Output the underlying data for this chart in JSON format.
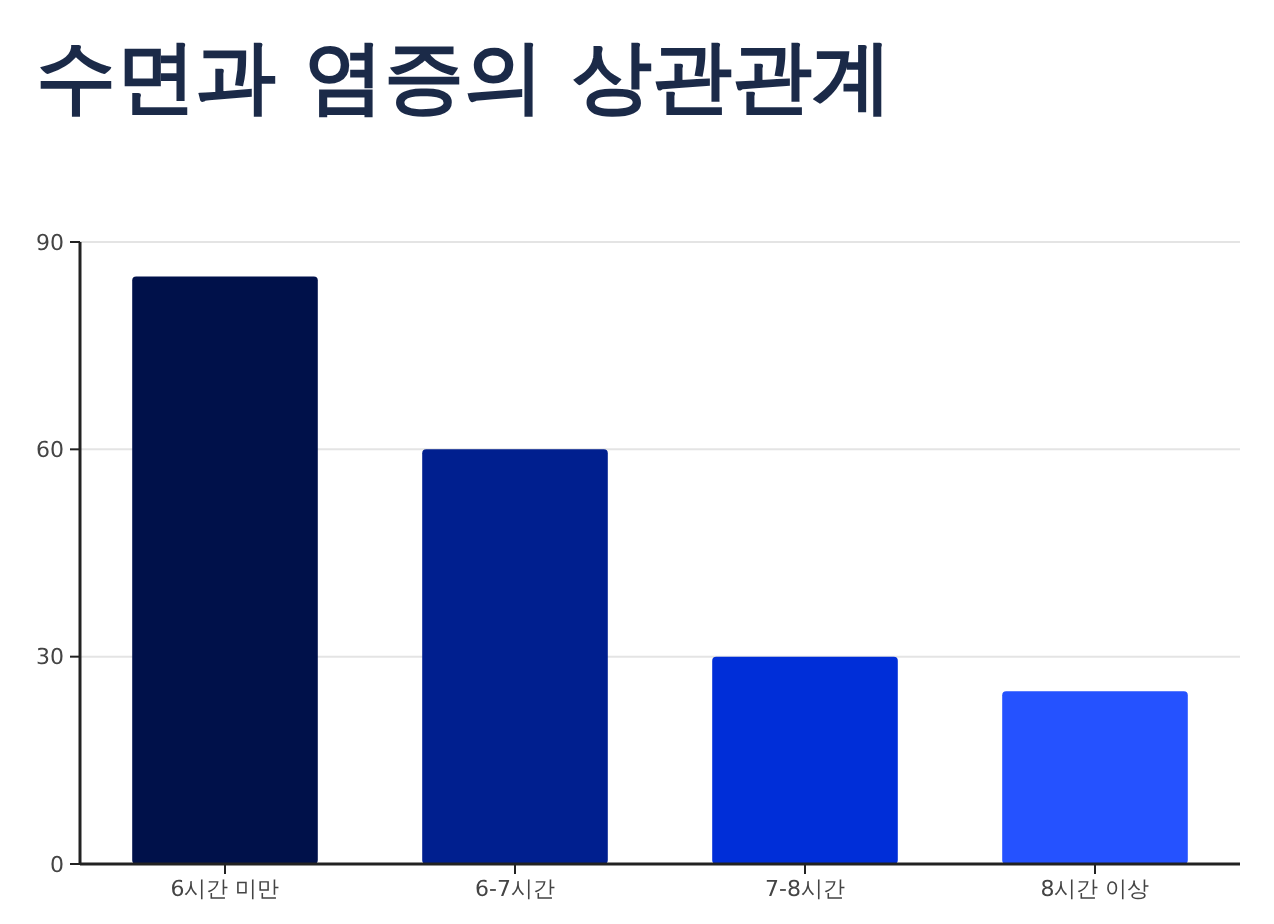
{
  "chart_data": {
    "type": "bar",
    "title": "수면과 염증의 상관관계",
    "categories": [
      "6시간 미만",
      "6-7시간",
      "7-8시간",
      "8시간 이상"
    ],
    "values": [
      85,
      60,
      30,
      25
    ],
    "colors": [
      "#00114a",
      "#001f8f",
      "#002ed8",
      "#2552ff"
    ],
    "ylim": [
      0,
      90
    ],
    "yticks": [
      0,
      30,
      60,
      90
    ],
    "grid": "y"
  }
}
